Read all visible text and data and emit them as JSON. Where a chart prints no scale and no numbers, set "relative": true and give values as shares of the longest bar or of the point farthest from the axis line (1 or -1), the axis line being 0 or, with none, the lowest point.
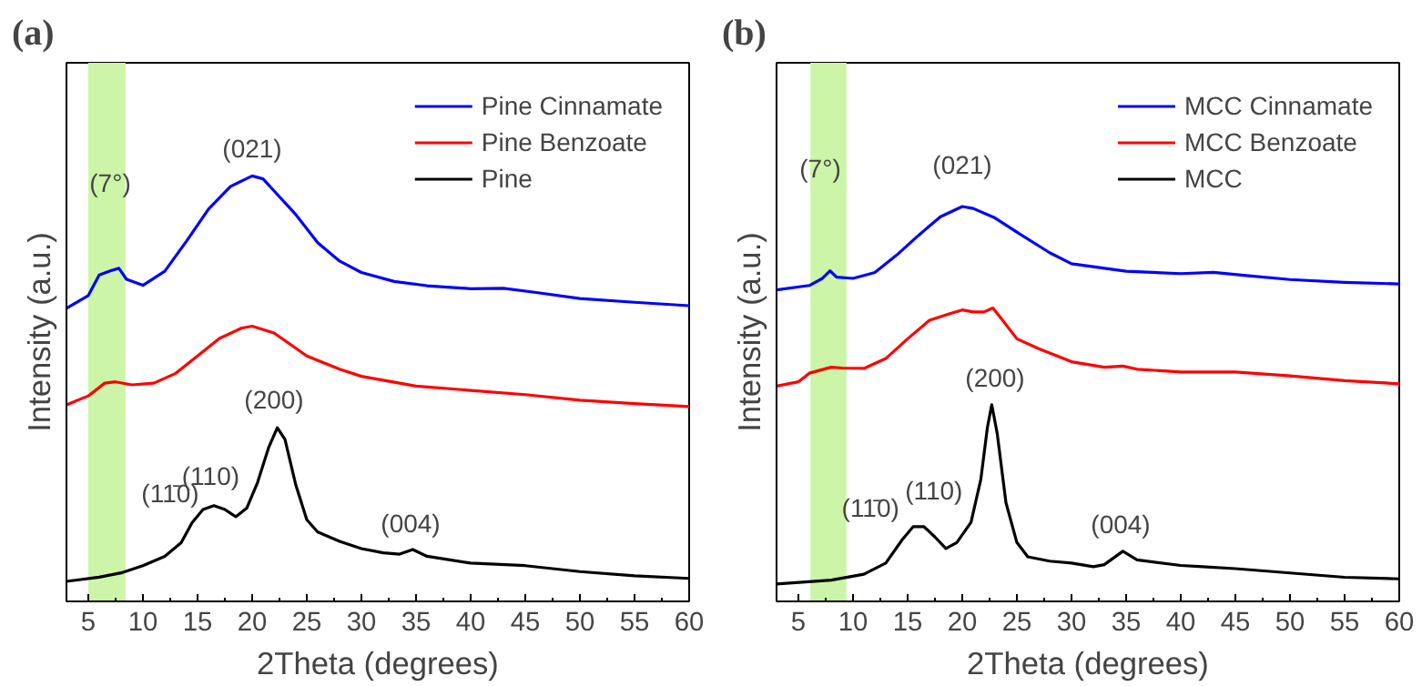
{
  "chart_data": [
    {
      "type": "line",
      "title": "(a)",
      "xlabel": "2Theta (degrees)",
      "ylabel": "Intensity (a.u.)",
      "relative": true,
      "xlim": [
        3,
        60
      ],
      "xticks": [
        5,
        10,
        15,
        20,
        25,
        30,
        35,
        40,
        45,
        50,
        55,
        60
      ],
      "grid": false,
      "legend": "top right",
      "marker": "none",
      "line_style": "solid",
      "bands": [
        {
          "axis": "x",
          "from": 5,
          "to": 8.4,
          "color": "#ccf5a8"
        }
      ],
      "annotations": [
        "(7°)",
        "(021)",
        "(11̄0)",
        "(110)",
        "(200)",
        "(004)"
      ],
      "series": [
        {
          "name": "Pine Cinnamate",
          "color": "#0000ff",
          "x": [
            3,
            5,
            6,
            7,
            7.8,
            8.5,
            10,
            12,
            14,
            16,
            18,
            20,
            21,
            22,
            24,
            26,
            28,
            30,
            33,
            36,
            40,
            43,
            46,
            50,
            55,
            60
          ],
          "values": [
            0.689,
            0.719,
            0.767,
            0.777,
            0.783,
            0.757,
            0.743,
            0.776,
            0.847,
            0.922,
            0.975,
            1.0,
            0.993,
            0.965,
            0.909,
            0.843,
            0.8,
            0.773,
            0.752,
            0.742,
            0.735,
            0.736,
            0.726,
            0.712,
            0.703,
            0.695
          ]
        },
        {
          "name": "Pine Benzoate",
          "color": "#ff0000",
          "x": [
            3,
            5,
            6.5,
            7.5,
            9,
            11,
            13,
            15,
            17,
            19,
            20,
            22,
            23.5,
            25,
            28,
            30,
            35,
            40,
            45,
            50,
            55,
            60
          ],
          "values": [
            0.462,
            0.483,
            0.513,
            0.516,
            0.509,
            0.513,
            0.536,
            0.577,
            0.618,
            0.642,
            0.647,
            0.631,
            0.604,
            0.577,
            0.546,
            0.529,
            0.506,
            0.496,
            0.486,
            0.473,
            0.465,
            0.458
          ]
        },
        {
          "name": "Pine",
          "color": "#000000",
          "x": [
            3,
            6,
            8,
            10,
            12,
            13.5,
            14.5,
            15.5,
            16.5,
            17.5,
            18.5,
            19.5,
            20.5,
            21.5,
            22.3,
            23,
            24,
            25,
            26,
            28,
            30,
            32,
            33.5,
            34.7,
            36,
            40,
            45,
            50,
            55,
            60
          ],
          "values": [
            0.047,
            0.057,
            0.067,
            0.084,
            0.106,
            0.138,
            0.185,
            0.216,
            0.225,
            0.216,
            0.199,
            0.219,
            0.28,
            0.361,
            0.408,
            0.381,
            0.273,
            0.192,
            0.163,
            0.141,
            0.124,
            0.114,
            0.111,
            0.122,
            0.106,
            0.09,
            0.084,
            0.07,
            0.06,
            0.054
          ]
        }
      ]
    },
    {
      "type": "line",
      "title": "(b)",
      "xlabel": "2Theta (degrees)",
      "ylabel": "Intensity (a.u.)",
      "relative": true,
      "xlim": [
        3,
        60
      ],
      "xticks": [
        5,
        10,
        15,
        20,
        25,
        30,
        35,
        40,
        45,
        50,
        55,
        60
      ],
      "grid": false,
      "legend": "top right",
      "marker": "none",
      "line_style": "solid",
      "bands": [
        {
          "axis": "x",
          "from": 6.1,
          "to": 9.4,
          "color": "#ccf5a8"
        }
      ],
      "annotations": [
        "(7°)",
        "(021)",
        "(11̄0)",
        "(110)",
        "(200)",
        "(004)"
      ],
      "series": [
        {
          "name": "MCC Cinnamate",
          "color": "#0000ff",
          "x": [
            3,
            6,
            7.2,
            7.9,
            8.5,
            10,
            12,
            14,
            16,
            18,
            20,
            21,
            23,
            25,
            28,
            30,
            35,
            40,
            43,
            46,
            50,
            55,
            60
          ],
          "values": [
            0.789,
            0.8,
            0.818,
            0.837,
            0.821,
            0.818,
            0.833,
            0.877,
            0.927,
            0.974,
            1.0,
            0.995,
            0.971,
            0.935,
            0.883,
            0.855,
            0.836,
            0.83,
            0.833,
            0.825,
            0.815,
            0.808,
            0.804
          ]
        },
        {
          "name": "MCC Benzoate",
          "color": "#ff0000",
          "x": [
            3,
            5,
            6,
            8,
            9,
            11,
            13,
            15,
            17,
            19,
            20,
            21,
            22,
            22.8,
            23.5,
            25,
            27,
            30,
            33,
            34.7,
            36,
            40,
            45,
            50,
            55,
            60
          ],
          "values": [
            0.545,
            0.556,
            0.578,
            0.593,
            0.591,
            0.59,
            0.615,
            0.665,
            0.712,
            0.73,
            0.738,
            0.733,
            0.733,
            0.743,
            0.719,
            0.665,
            0.64,
            0.607,
            0.593,
            0.596,
            0.588,
            0.581,
            0.581,
            0.571,
            0.559,
            0.551
          ]
        },
        {
          "name": "MCC",
          "color": "#000000",
          "x": [
            3,
            8,
            11,
            13,
            14.5,
            15.5,
            16.5,
            17.5,
            18.5,
            19.5,
            20.8,
            21.7,
            22.3,
            22.7,
            23.2,
            24,
            25,
            26,
            28,
            30,
            32,
            33,
            34.7,
            36,
            40,
            42,
            45,
            50,
            55,
            60
          ],
          "values": [
            0.044,
            0.054,
            0.069,
            0.097,
            0.156,
            0.189,
            0.189,
            0.163,
            0.134,
            0.149,
            0.2,
            0.309,
            0.44,
            0.498,
            0.425,
            0.25,
            0.149,
            0.113,
            0.102,
            0.097,
            0.088,
            0.093,
            0.127,
            0.105,
            0.091,
            0.088,
            0.083,
            0.072,
            0.061,
            0.057
          ]
        }
      ]
    }
  ]
}
